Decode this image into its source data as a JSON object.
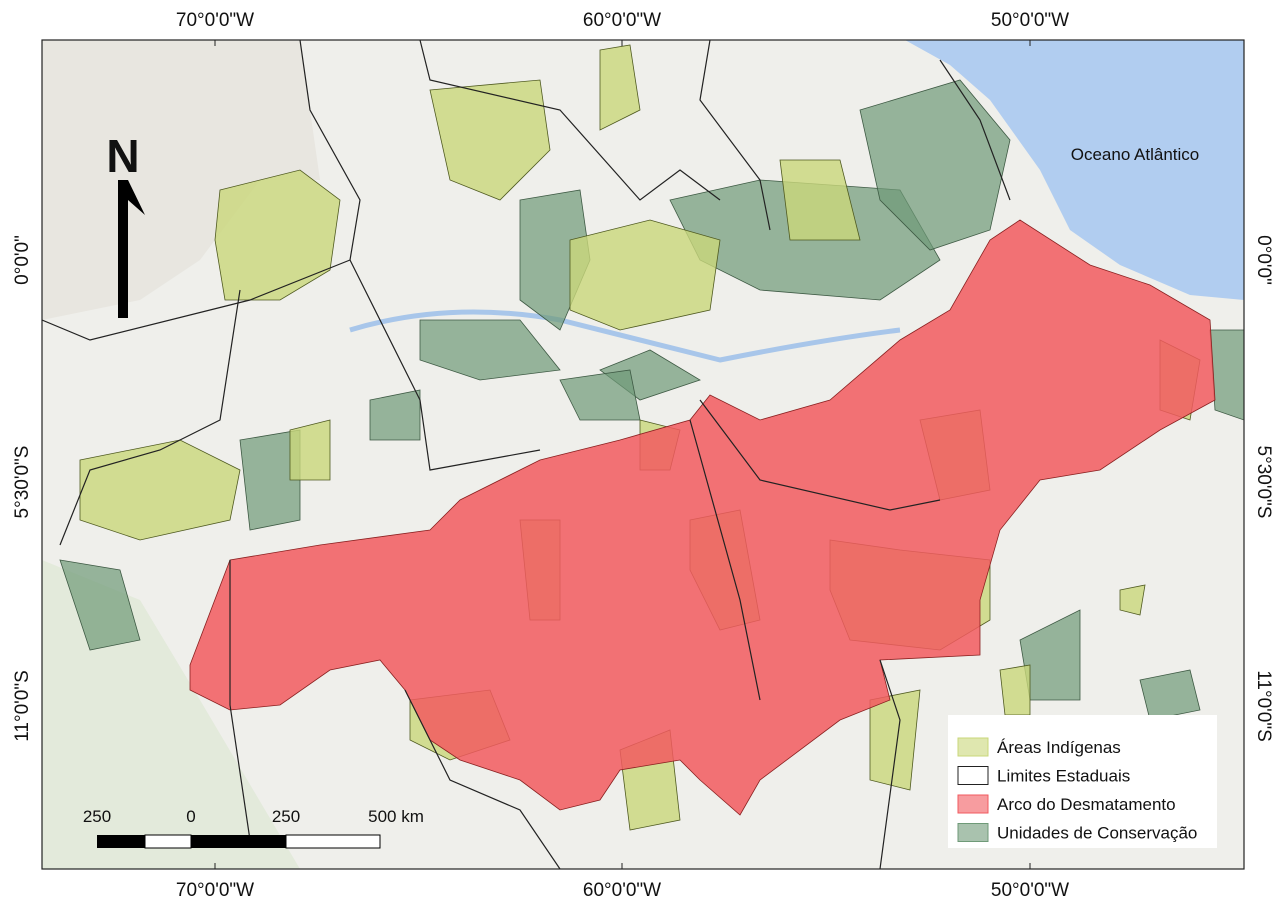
{
  "map": {
    "top_labels": [
      "70°0'0\"W",
      "60°0'0\"W",
      "50°0'0\"W"
    ],
    "bottom_labels": [
      "70°0'0\"W",
      "60°0'0\"W",
      "50°0'0\"W"
    ],
    "left_labels": [
      "0°0'0\"",
      "5°30'0\"S",
      "11°0'0\"S"
    ],
    "right_labels": [
      "0°0'0\"",
      "5°30'0\"S",
      "11°0'0\"S"
    ],
    "ocean_label": "Oceano Atlântico",
    "north": "N",
    "scale_labels": [
      "250",
      "0",
      "250",
      "500 km"
    ],
    "legend": [
      {
        "label": "Áreas Indígenas",
        "color": "#c9d77a"
      },
      {
        "label": "Limites Estaduais",
        "color": "#222222"
      },
      {
        "label": "Arco do Desmatamento",
        "color": "#f25a5f"
      },
      {
        "label": "Unidades de Conservação",
        "color": "#6f9a78"
      }
    ]
  }
}
